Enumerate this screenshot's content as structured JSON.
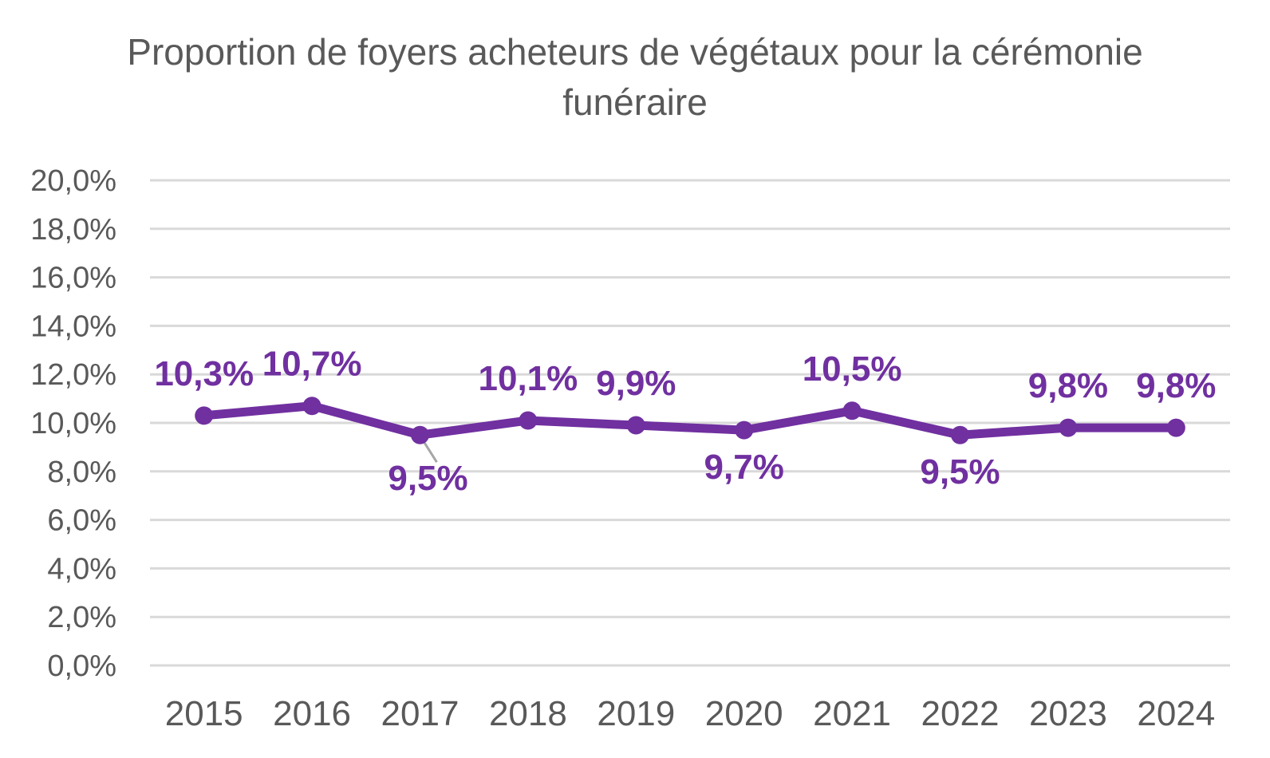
{
  "chart_data": {
    "type": "line",
    "title": "Proportion de foyers acheteurs de végétaux pour la cérémonie funéraire",
    "categories": [
      "2015",
      "2016",
      "2017",
      "2018",
      "2019",
      "2020",
      "2021",
      "2022",
      "2023",
      "2024"
    ],
    "values": [
      10.3,
      10.7,
      9.5,
      10.1,
      9.9,
      9.7,
      10.5,
      9.5,
      9.8,
      9.8
    ],
    "data_labels": [
      "10,3%",
      "10,7%",
      "9,5%",
      "10,1%",
      "9,9%",
      "9,7%",
      "10,5%",
      "9,5%",
      "9,8%",
      "9,8%"
    ],
    "label_positions": [
      "above",
      "above",
      "below-leader",
      "above",
      "above",
      "below",
      "above",
      "below",
      "above",
      "above"
    ],
    "xlabel": "",
    "ylabel": "",
    "ylim": [
      0,
      20
    ],
    "ytick_step": 2,
    "ytick_labels": [
      "0,0%",
      "2,0%",
      "4,0%",
      "6,0%",
      "8,0%",
      "10,0%",
      "12,0%",
      "14,0%",
      "16,0%",
      "18,0%",
      "20,0%"
    ],
    "grid": "horizontal",
    "legend": "none",
    "colors": {
      "line": "#7030A0",
      "marker": "#7030A0",
      "data_label": "#7030A0",
      "axis_text": "#595959",
      "title_text": "#595959",
      "gridline": "#D9D9D9",
      "leader_line": "#A6A6A6",
      "background": "#FFFFFF"
    }
  }
}
